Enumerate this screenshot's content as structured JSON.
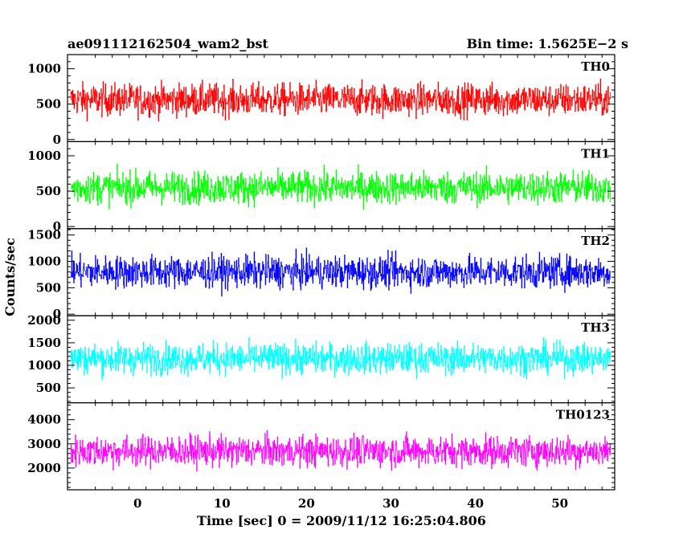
{
  "header": {
    "title": "ae091112162504_wam2_bst",
    "bin_time": "Bin time: 1.5625E−2 s"
  },
  "chart_data": {
    "type": "line",
    "xlabel": "Time [sec] 0 = 2009/11/12 16:25:04.806",
    "ylabel": "Counts/sec",
    "xlim": [
      -8.3,
      56.5
    ],
    "data_xlim": [
      -7.9,
      56.0
    ],
    "x_ticks": [
      0,
      10,
      20,
      30,
      40,
      50
    ],
    "grid": false,
    "panels": [
      {
        "name": "TH0",
        "color": "#ff0000",
        "ylim": [
          -30,
          1200
        ],
        "y_ticks": [
          0,
          500,
          1000
        ],
        "mean": 560,
        "range": [
          0,
          1200
        ]
      },
      {
        "name": "TH1",
        "color": "#00ff00",
        "ylim": [
          -30,
          1200
        ],
        "y_ticks": [
          0,
          500,
          1000
        ],
        "mean": 550,
        "range": [
          0,
          1200
        ]
      },
      {
        "name": "TH2",
        "color": "#0000ff",
        "ylim": [
          -30,
          1620
        ],
        "y_ticks": [
          0,
          500,
          1000,
          1500
        ],
        "mean": 800,
        "range": [
          20,
          1620
        ]
      },
      {
        "name": "TH3",
        "color": "#00ffff",
        "ylim": [
          170,
          2100
        ],
        "y_ticks": [
          500,
          1000,
          1500,
          2000
        ],
        "mean": 1150,
        "range": [
          300,
          2100
        ]
      },
      {
        "name": "TH0123",
        "color": "#ff00ff",
        "ylim": [
          1100,
          4700
        ],
        "y_ticks": [
          2000,
          3000,
          4000
        ],
        "mean": 2700,
        "range": [
          1250,
          4600
        ]
      }
    ]
  }
}
